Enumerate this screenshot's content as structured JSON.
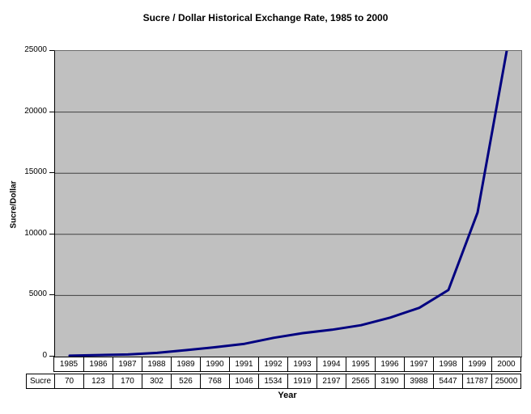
{
  "chart_data": {
    "type": "line",
    "title": "Sucre / Dollar Historical Exchange Rate, 1985 to 2000",
    "xlabel": "Year",
    "ylabel": "Sucre/Dollar",
    "categories": [
      "1985",
      "1986",
      "1987",
      "1988",
      "1989",
      "1990",
      "1991",
      "1992",
      "1993",
      "1994",
      "1995",
      "1996",
      "1997",
      "1998",
      "1999",
      "2000"
    ],
    "series": [
      {
        "name": "Sucre",
        "values": [
          70,
          123,
          170,
          302,
          526,
          768,
          1046,
          1534,
          1919,
          2197,
          2565,
          3190,
          3988,
          5447,
          11787,
          25000
        ]
      }
    ],
    "ylim": [
      0,
      25000
    ],
    "yticks": [
      0,
      5000,
      10000,
      15000,
      20000,
      25000
    ],
    "grid": true,
    "legend_position": "none",
    "data_table_below_axis": true,
    "line_color": "#000080",
    "plot_bg_color": "#c0c0c0",
    "gridline_color": "#404040",
    "text_color": "#000000"
  }
}
